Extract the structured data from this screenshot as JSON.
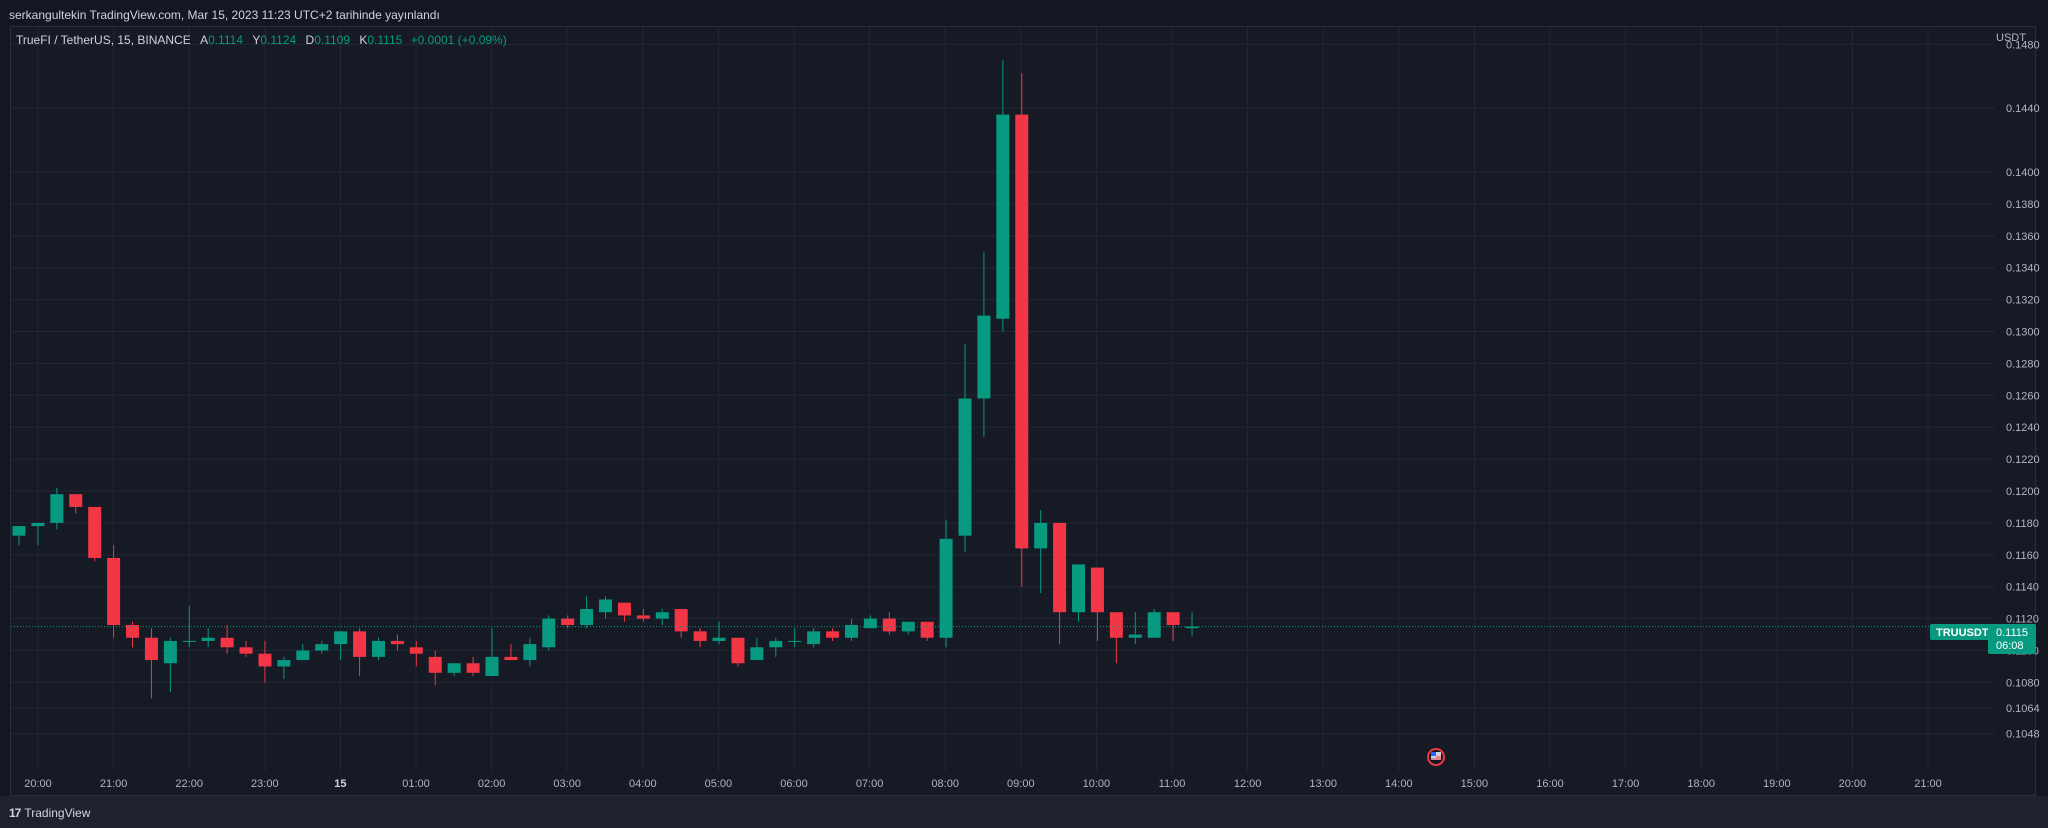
{
  "header": {
    "text": "serkangultekin TradingView.com, Mar 15, 2023 11:23 UTC+2 tarihinde yayınlandı"
  },
  "legend": {
    "symbol": "TrueFI / TetherUS, 15, BINANCE",
    "open_label": "A",
    "open": "0.1114",
    "high_label": "Y",
    "high": "0.1124",
    "low_label": "D",
    "low": "0.1109",
    "close_label": "K",
    "close": "0.1115",
    "change": "+0.0001 (+0.09%)"
  },
  "price_tag": {
    "symbol": "TRUUSDT",
    "price": "0.1115",
    "countdown": "06:08"
  },
  "footer": {
    "brand": "TradingView",
    "logo_mark": "17"
  },
  "colors": {
    "up": "#089981",
    "down": "#f23645",
    "background": "#161a25",
    "grid": "#232733"
  },
  "chart_data": {
    "type": "candlestick",
    "currency": "USDT",
    "ylim": [
      0.104,
      0.1496
    ],
    "y_ticks": [
      "0.1048",
      "0.1064",
      "0.1080",
      "0.1100",
      "0.1120",
      "0.1140",
      "0.1160",
      "0.1180",
      "0.1200",
      "0.1220",
      "0.1240",
      "0.1260",
      "0.1280",
      "0.1300",
      "0.1320",
      "0.1340",
      "0.1360",
      "0.1380",
      "0.1400",
      "0.1440",
      "0.1480"
    ],
    "x_ticks": [
      "20:00",
      "21:00",
      "22:00",
      "23:00",
      "15",
      "01:00",
      "02:00",
      "03:00",
      "04:00",
      "05:00",
      "06:00",
      "07:00",
      "08:00",
      "09:00",
      "10:00",
      "11:00",
      "12:00",
      "13:00",
      "14:00",
      "15:00",
      "16:00",
      "17:00",
      "18:00",
      "19:00",
      "20:00",
      "21:00"
    ],
    "bold_tick": "15",
    "grid": true,
    "current_price": 0.1115,
    "candles": [
      {
        "o": 0.1172,
        "h": 0.1178,
        "l": 0.1166,
        "c": 0.1178
      },
      {
        "o": 0.1178,
        "h": 0.118,
        "l": 0.1166,
        "c": 0.118
      },
      {
        "o": 0.118,
        "h": 0.1202,
        "l": 0.1176,
        "c": 0.1198
      },
      {
        "o": 0.1198,
        "h": 0.1198,
        "l": 0.1186,
        "c": 0.119
      },
      {
        "o": 0.119,
        "h": 0.119,
        "l": 0.1156,
        "c": 0.1158
      },
      {
        "o": 0.1158,
        "h": 0.1166,
        "l": 0.1108,
        "c": 0.1116
      },
      {
        "o": 0.1116,
        "h": 0.1118,
        "l": 0.1102,
        "c": 0.1108
      },
      {
        "o": 0.1108,
        "h": 0.1114,
        "l": 0.107,
        "c": 0.1094
      },
      {
        "o": 0.1092,
        "h": 0.1108,
        "l": 0.1074,
        "c": 0.1106
      },
      {
        "o": 0.1106,
        "h": 0.1128,
        "l": 0.1102,
        "c": 0.1106
      },
      {
        "o": 0.1106,
        "h": 0.1114,
        "l": 0.1102,
        "c": 0.1108
      },
      {
        "o": 0.1108,
        "h": 0.1116,
        "l": 0.1098,
        "c": 0.1102
      },
      {
        "o": 0.1102,
        "h": 0.1106,
        "l": 0.1096,
        "c": 0.1098
      },
      {
        "o": 0.1098,
        "h": 0.1106,
        "l": 0.108,
        "c": 0.109
      },
      {
        "o": 0.109,
        "h": 0.1096,
        "l": 0.1082,
        "c": 0.1094
      },
      {
        "o": 0.1094,
        "h": 0.1104,
        "l": 0.1094,
        "c": 0.11
      },
      {
        "o": 0.11,
        "h": 0.1106,
        "l": 0.1098,
        "c": 0.1104
      },
      {
        "o": 0.1104,
        "h": 0.1112,
        "l": 0.1094,
        "c": 0.1112
      },
      {
        "o": 0.1112,
        "h": 0.1114,
        "l": 0.1084,
        "c": 0.1096
      },
      {
        "o": 0.1096,
        "h": 0.1108,
        "l": 0.1094,
        "c": 0.1106
      },
      {
        "o": 0.1106,
        "h": 0.111,
        "l": 0.11,
        "c": 0.1104
      },
      {
        "o": 0.1102,
        "h": 0.1106,
        "l": 0.109,
        "c": 0.1098
      },
      {
        "o": 0.1096,
        "h": 0.11,
        "l": 0.1078,
        "c": 0.1086
      },
      {
        "o": 0.1086,
        "h": 0.1092,
        "l": 0.1084,
        "c": 0.1092
      },
      {
        "o": 0.1092,
        "h": 0.1096,
        "l": 0.1084,
        "c": 0.1086
      },
      {
        "o": 0.1084,
        "h": 0.1114,
        "l": 0.1084,
        "c": 0.1096
      },
      {
        "o": 0.1096,
        "h": 0.1104,
        "l": 0.1094,
        "c": 0.1094
      },
      {
        "o": 0.1094,
        "h": 0.1108,
        "l": 0.109,
        "c": 0.1104
      },
      {
        "o": 0.1102,
        "h": 0.1122,
        "l": 0.11,
        "c": 0.112
      },
      {
        "o": 0.112,
        "h": 0.1122,
        "l": 0.1114,
        "c": 0.1116
      },
      {
        "o": 0.1116,
        "h": 0.1134,
        "l": 0.1114,
        "c": 0.1126
      },
      {
        "o": 0.1124,
        "h": 0.1134,
        "l": 0.112,
        "c": 0.1132
      },
      {
        "o": 0.113,
        "h": 0.113,
        "l": 0.1118,
        "c": 0.1122
      },
      {
        "o": 0.1122,
        "h": 0.1126,
        "l": 0.1118,
        "c": 0.112
      },
      {
        "o": 0.112,
        "h": 0.1126,
        "l": 0.1116,
        "c": 0.1124
      },
      {
        "o": 0.1126,
        "h": 0.1126,
        "l": 0.1108,
        "c": 0.1112
      },
      {
        "o": 0.1112,
        "h": 0.1114,
        "l": 0.1102,
        "c": 0.1106
      },
      {
        "o": 0.1106,
        "h": 0.1118,
        "l": 0.1104,
        "c": 0.1108
      },
      {
        "o": 0.1108,
        "h": 0.1108,
        "l": 0.109,
        "c": 0.1092
      },
      {
        "o": 0.1094,
        "h": 0.1108,
        "l": 0.1094,
        "c": 0.1102
      },
      {
        "o": 0.1102,
        "h": 0.1108,
        "l": 0.1096,
        "c": 0.1106
      },
      {
        "o": 0.1106,
        "h": 0.1114,
        "l": 0.1102,
        "c": 0.1106
      },
      {
        "o": 0.1104,
        "h": 0.1114,
        "l": 0.1102,
        "c": 0.1112
      },
      {
        "o": 0.1112,
        "h": 0.1114,
        "l": 0.1106,
        "c": 0.1108
      },
      {
        "o": 0.1108,
        "h": 0.112,
        "l": 0.1106,
        "c": 0.1116
      },
      {
        "o": 0.1114,
        "h": 0.1122,
        "l": 0.1114,
        "c": 0.112
      },
      {
        "o": 0.112,
        "h": 0.1124,
        "l": 0.111,
        "c": 0.1112
      },
      {
        "o": 0.1112,
        "h": 0.1118,
        "l": 0.111,
        "c": 0.1118
      },
      {
        "o": 0.1118,
        "h": 0.1118,
        "l": 0.1106,
        "c": 0.1108
      },
      {
        "o": 0.1108,
        "h": 0.1182,
        "l": 0.1102,
        "c": 0.117
      },
      {
        "o": 0.1172,
        "h": 0.1292,
        "l": 0.1162,
        "c": 0.1258
      },
      {
        "o": 0.1258,
        "h": 0.135,
        "l": 0.1234,
        "c": 0.131
      },
      {
        "o": 0.1308,
        "h": 0.147,
        "l": 0.13,
        "c": 0.1436
      },
      {
        "o": 0.1436,
        "h": 0.1462,
        "l": 0.114,
        "c": 0.1164
      },
      {
        "o": 0.1164,
        "h": 0.1188,
        "l": 0.1136,
        "c": 0.118
      },
      {
        "o": 0.118,
        "h": 0.118,
        "l": 0.1104,
        "c": 0.1124
      },
      {
        "o": 0.1124,
        "h": 0.1154,
        "l": 0.1118,
        "c": 0.1154
      },
      {
        "o": 0.1152,
        "h": 0.1152,
        "l": 0.1106,
        "c": 0.1124
      },
      {
        "o": 0.1124,
        "h": 0.1124,
        "l": 0.1092,
        "c": 0.1108
      },
      {
        "o": 0.1108,
        "h": 0.1124,
        "l": 0.1104,
        "c": 0.111
      },
      {
        "o": 0.1108,
        "h": 0.1126,
        "l": 0.1108,
        "c": 0.1124
      },
      {
        "o": 0.1124,
        "h": 0.1124,
        "l": 0.1106,
        "c": 0.1116
      },
      {
        "o": 0.1114,
        "h": 0.1124,
        "l": 0.1109,
        "c": 0.1115
      }
    ]
  }
}
